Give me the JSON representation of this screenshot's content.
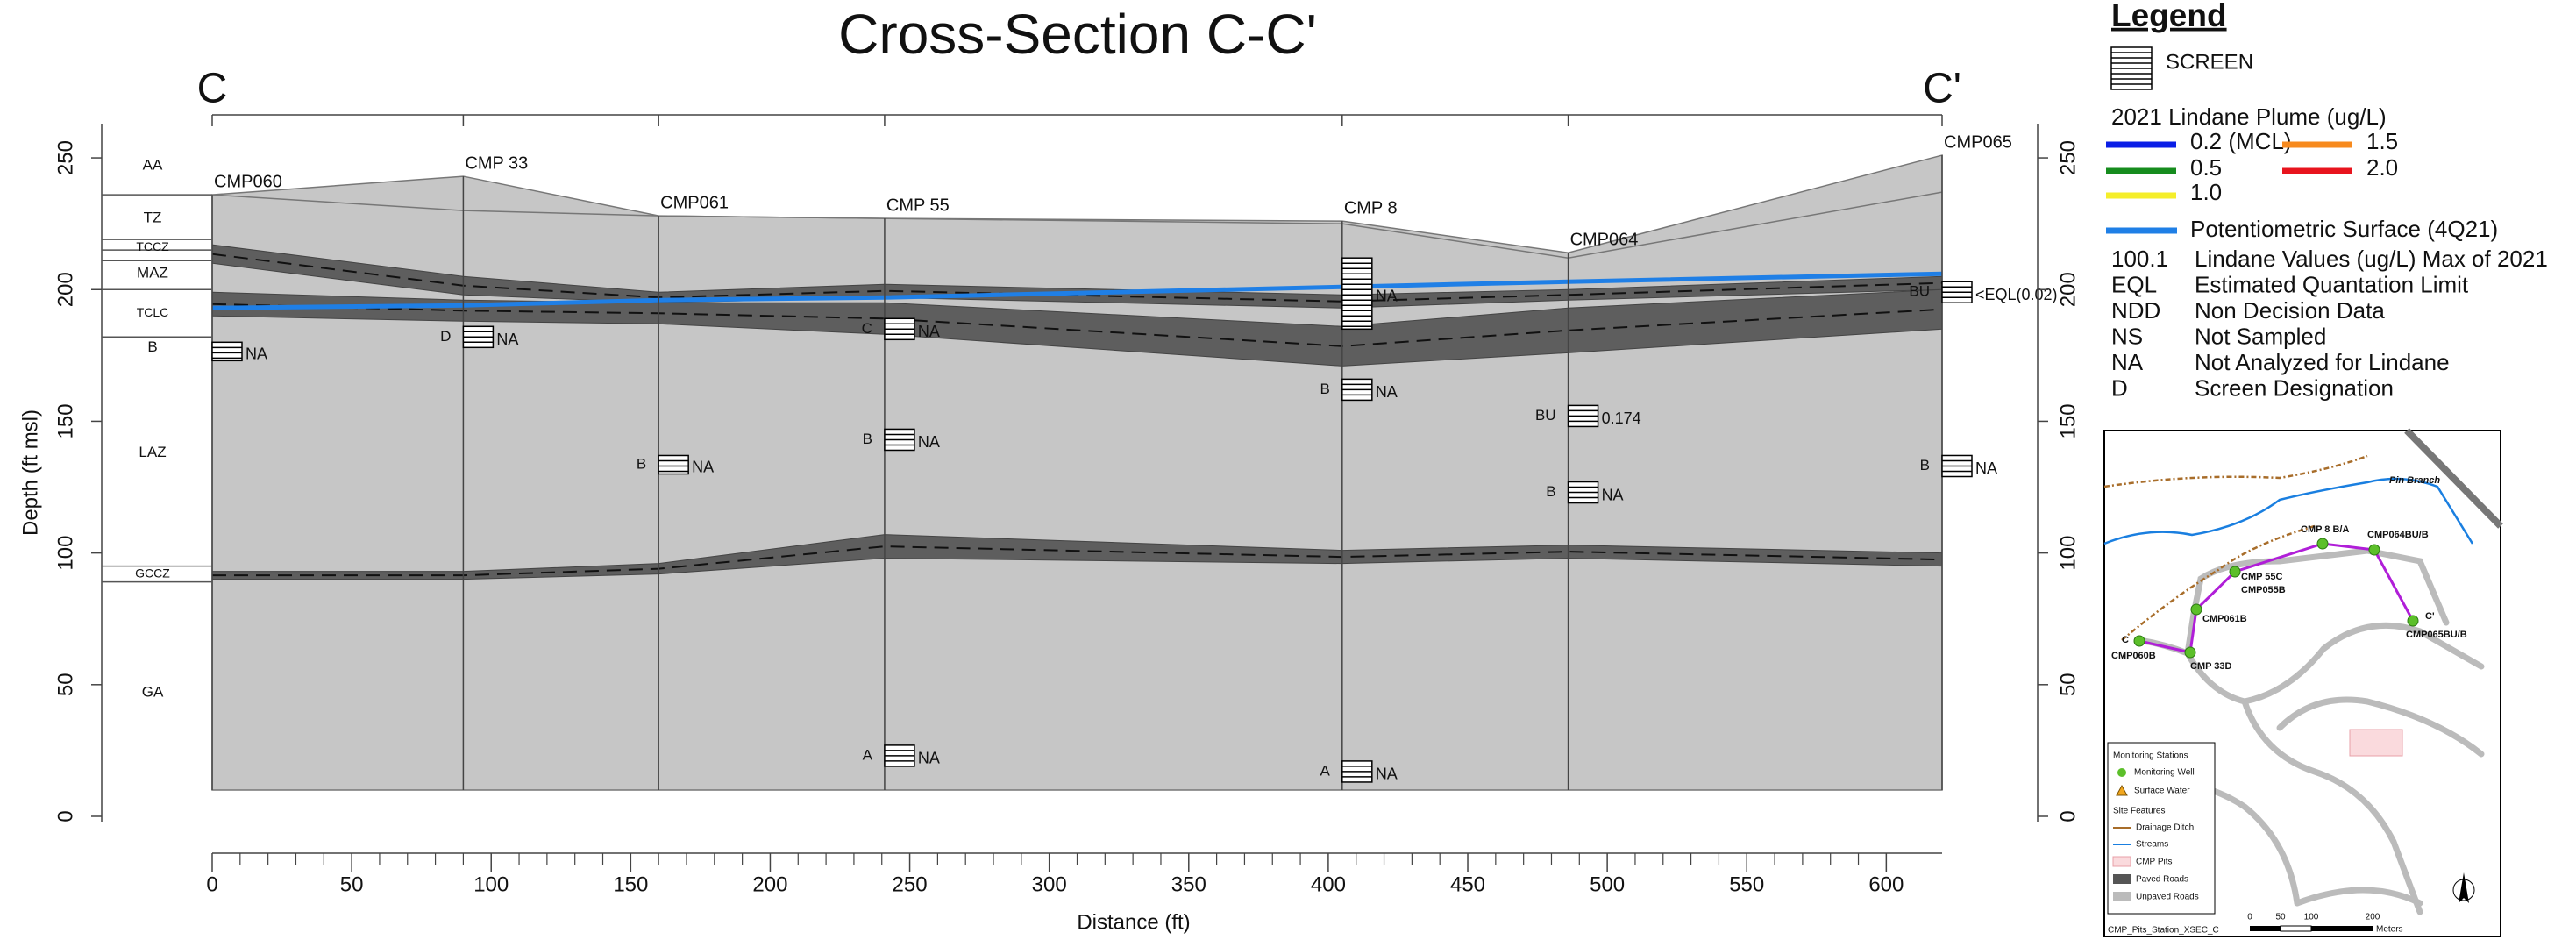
{
  "chart_data": {
    "type": "section",
    "title": "Cross-Section C-C'",
    "section_start": "C",
    "section_end": "C'",
    "xlabel": "Distance (ft)",
    "ylabel": "Depth (ft msl)",
    "xlim": [
      0,
      620
    ],
    "xticks": [
      0,
      50,
      100,
      150,
      200,
      250,
      300,
      350,
      400,
      450,
      500,
      550,
      600
    ],
    "ylim": [
      -2,
      263
    ],
    "yticks": [
      0,
      50,
      100,
      150,
      200,
      250
    ],
    "base": 10,
    "wells": [
      {
        "name": "CMP060",
        "x": 0,
        "ground": 236,
        "screens": [
          {
            "top": 180,
            "bottom": 173,
            "label": "NA"
          }
        ]
      },
      {
        "name": "CMP 33",
        "x": 90,
        "ground": 243,
        "screens": [
          {
            "designation": "D",
            "top": 186,
            "bottom": 178,
            "label": "NA"
          }
        ]
      },
      {
        "name": "CMP061",
        "x": 160,
        "ground": 228,
        "screens": [
          {
            "designation": "B",
            "top": 137,
            "bottom": 130,
            "label": "NA"
          }
        ]
      },
      {
        "name": "CMP 55",
        "x": 241,
        "ground": 227,
        "screens": [
          {
            "designation": "C",
            "top": 189,
            "bottom": 181,
            "label": "NA"
          },
          {
            "designation": "B",
            "top": 147,
            "bottom": 139,
            "label": "NA"
          },
          {
            "designation": "A",
            "top": 27,
            "bottom": 19,
            "label": "NA"
          }
        ]
      },
      {
        "name": "CMP  8",
        "x": 405,
        "ground": 226,
        "screens": [
          {
            "top": 212,
            "bottom": 185,
            "label": "NA"
          },
          {
            "designation": "B",
            "top": 166,
            "bottom": 158,
            "label": "NA"
          },
          {
            "designation": "A",
            "top": 21,
            "bottom": 13,
            "label": "NA"
          }
        ]
      },
      {
        "name": "CMP064",
        "x": 486,
        "ground": 214,
        "screens": [
          {
            "designation": "BU",
            "top": 156,
            "bottom": 148,
            "label": "0.174"
          },
          {
            "designation": "B",
            "top": 127,
            "bottom": 119,
            "label": "NA"
          }
        ]
      },
      {
        "name": "CMP065",
        "x": 620,
        "ground": 251,
        "screens": [
          {
            "designation": "BU",
            "top": 203,
            "bottom": 195,
            "label": "<EQL(0.02)"
          },
          {
            "designation": "B",
            "top": 137,
            "bottom": 129,
            "label": "NA"
          }
        ]
      }
    ],
    "upper_surface": [
      236,
      230,
      228,
      227,
      225,
      212,
      237
    ],
    "clay_bands": [
      {
        "top": [
          217,
          205,
          199,
          202,
          198,
          200,
          205
        ],
        "bottom": [
          210,
          198,
          195,
          197,
          193,
          196,
          200
        ]
      },
      {
        "top": [
          199,
          196,
          195,
          195,
          186,
          193,
          200
        ],
        "bottom": [
          190,
          188,
          187,
          183,
          171,
          176,
          185
        ]
      },
      {
        "top": [
          93,
          93,
          96,
          107,
          101,
          103,
          100
        ],
        "bottom": [
          90,
          90,
          92,
          98,
          96,
          98,
          95
        ]
      }
    ],
    "potentiometric": [
      193,
      194,
      196,
      197,
      201,
      203,
      206
    ],
    "units": [
      {
        "name": "AA",
        "depth": 247
      },
      {
        "name": "TZ",
        "depth": 227
      },
      {
        "name": "TCCZ",
        "depth": 216
      },
      {
        "name": "MAZ",
        "depth": 206
      },
      {
        "name": "TCLC",
        "depth": 191
      },
      {
        "name": "B",
        "depth": 178
      },
      {
        "name": "LAZ",
        "depth": 138
      },
      {
        "name": "GCCZ",
        "depth": 92
      },
      {
        "name": "GA",
        "depth": 47
      }
    ],
    "boundaries": [
      236,
      219,
      215,
      211,
      200,
      182,
      95,
      89
    ],
    "legend": {
      "title": "Legend",
      "screen": "SCREEN",
      "plume_title": "2021 Lindane Plume (ug/L)",
      "plume": [
        {
          "name": "0.2 (MCL)",
          "color": "#0a1ee6"
        },
        {
          "name": "1.5",
          "color": "#f78a1e"
        },
        {
          "name": "0.5",
          "color": "#168c1e"
        },
        {
          "name": "2.0",
          "color": "#e8141e"
        },
        {
          "name": "1.0",
          "color": "#f5ee2a"
        }
      ],
      "potentiometric": {
        "name": "Potentiometric Surface (4Q21)",
        "color": "#1f7fe6"
      },
      "abbreviations": [
        [
          "100.1",
          "Lindane Values (ug/L) Max of 2021"
        ],
        [
          "EQL",
          "Estimated Quantation Limit"
        ],
        [
          "NDD",
          "Non Decision Data"
        ],
        [
          "NS",
          "Not Sampled"
        ],
        [
          "NA",
          "Not Analyzed for Lindane"
        ],
        [
          "D",
          "Screen Designation"
        ]
      ]
    },
    "map": {
      "points": [
        "C",
        "CMP060B",
        "CMP 33D",
        "CMP061B",
        "CMP 55C",
        "CMP055B",
        "CMP 8 B/A",
        "CMP064BU/B",
        "C'",
        "CMP065BU/B"
      ],
      "stream": "Pin Branch",
      "legend": [
        "Monitoring Stations",
        "Monitoring Well",
        "Surface Water",
        "Site Features",
        "Drainage Ditch",
        "Streams",
        "CMP Pits",
        "Paved Roads",
        "Unpaved Roads"
      ],
      "scale": [
        "0",
        "50",
        "100",
        "200",
        "Meters"
      ],
      "footer": "CMP_Pits_Station_XSEC_C"
    }
  }
}
